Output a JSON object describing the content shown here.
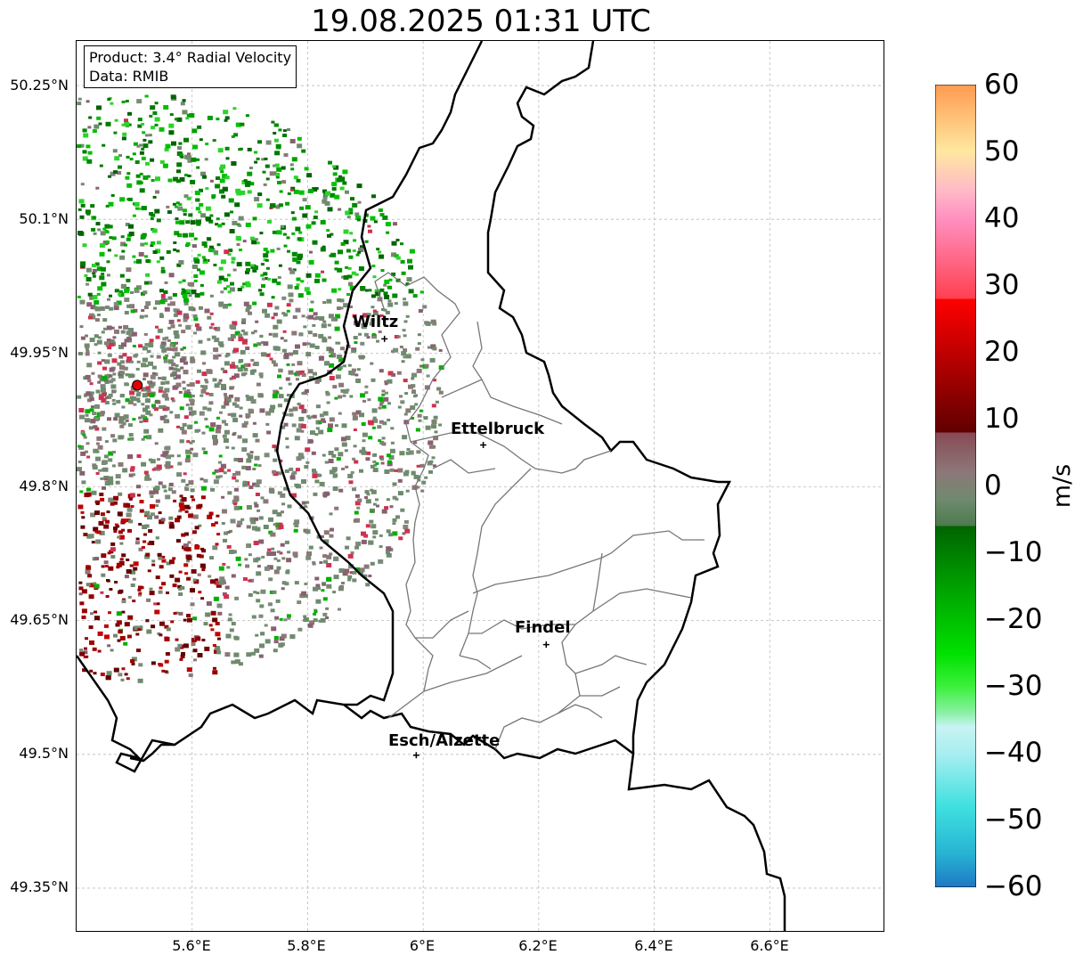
{
  "title": "19.08.2025 01:31 UTC",
  "info": {
    "product": "Product: 3.4° Radial Velocity",
    "data": "Data: RMIB"
  },
  "axes": {
    "lon_ticks": [
      "5.6°E",
      "5.8°E",
      "6°E",
      "6.2°E",
      "6.4°E",
      "6.6°E"
    ],
    "lat_ticks": [
      "50.25°N",
      "50.1°N",
      "49.95°N",
      "49.8°N",
      "49.65°N",
      "49.5°N",
      "49.35°N"
    ],
    "lon_values": [
      5.6,
      5.8,
      6.0,
      6.2,
      6.4,
      6.6
    ],
    "lat_values": [
      50.25,
      50.1,
      49.95,
      49.8,
      49.65,
      49.5,
      49.35
    ],
    "lon_range": [
      5.4,
      6.8
    ],
    "lat_range": [
      49.3,
      50.3
    ]
  },
  "cities": [
    {
      "name": "Wiltz",
      "lon": 5.933,
      "lat": 49.966
    },
    {
      "name": "Ettelbruck",
      "lon": 6.104,
      "lat": 49.847
    },
    {
      "name": "Findel",
      "lon": 6.213,
      "lat": 49.623
    },
    {
      "name": "Esch/Alzette",
      "lon": 5.988,
      "lat": 49.499
    }
  ],
  "radar_site": {
    "lon": 5.505,
    "lat": 49.914,
    "color": "#e00000"
  },
  "colorbar": {
    "unit": "m/s",
    "min": -60,
    "max": 60,
    "tick_labels": [
      "60",
      "50",
      "40",
      "30",
      "20",
      "10",
      "0",
      "−10",
      "−20",
      "−30",
      "−40",
      "−50",
      "−60"
    ],
    "stops": [
      {
        "v": -60,
        "c": "#1f78c4"
      },
      {
        "v": -55,
        "c": "#27b3d3"
      },
      {
        "v": -48,
        "c": "#3fe0e0"
      },
      {
        "v": -40,
        "c": "#a8eef0"
      },
      {
        "v": -36,
        "c": "#c8f3f3"
      },
      {
        "v": -34,
        "c": "#8cf0a8"
      },
      {
        "v": -30,
        "c": "#3cf03c"
      },
      {
        "v": -25,
        "c": "#00e000"
      },
      {
        "v": -15,
        "c": "#00a000"
      },
      {
        "v": -6,
        "c": "#006400"
      },
      {
        "v": -6,
        "c": "#4d7a4d"
      },
      {
        "v": -2,
        "c": "#708a6f"
      },
      {
        "v": 2,
        "c": "#8c7878"
      },
      {
        "v": 8,
        "c": "#884a55"
      },
      {
        "v": 8,
        "c": "#600000"
      },
      {
        "v": 20,
        "c": "#c00000"
      },
      {
        "v": 28,
        "c": "#ff0000"
      },
      {
        "v": 28,
        "c": "#ff4050"
      },
      {
        "v": 40,
        "c": "#ff90c0"
      },
      {
        "v": 44,
        "c": "#ffb8c8"
      },
      {
        "v": 50,
        "c": "#ffe8a0"
      },
      {
        "v": 60,
        "c": "#ff9a50"
      }
    ]
  }
}
